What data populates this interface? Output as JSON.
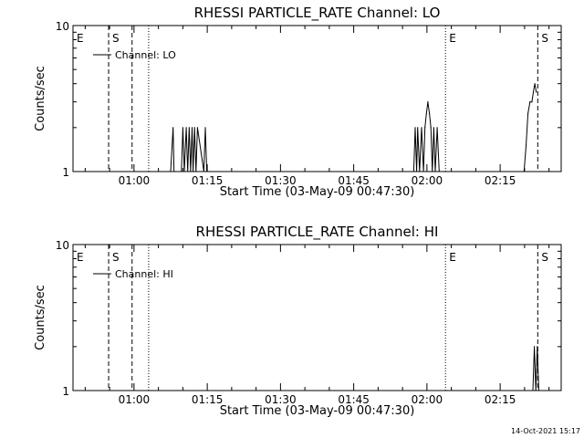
{
  "footer": {
    "timestamp": "14-Oct-2021 15:17"
  },
  "chart_data": [
    {
      "type": "line",
      "title": "RHESSI PARTICLE_RATE Channel: LO",
      "xlabel": "Start Time (03-May-09 00:47:30)",
      "ylabel": "Counts/sec",
      "log_y": true,
      "ylim": [
        1,
        10
      ],
      "xlim_minutes": [
        0,
        100
      ],
      "x_unit": "minutes after 00:47:30",
      "x_ticks": [
        {
          "label": "01:00",
          "value": 12.5
        },
        {
          "label": "01:15",
          "value": 27.5
        },
        {
          "label": "01:30",
          "value": 42.5
        },
        {
          "label": "01:45",
          "value": 57.5
        },
        {
          "label": "02:00",
          "value": 72.5
        },
        {
          "label": "02:15",
          "value": 87.5
        }
      ],
      "y_ticks": [
        {
          "label": "1",
          "value": 1
        },
        {
          "label": "10",
          "value": 10
        }
      ],
      "legend": {
        "position": "top-left",
        "entries": [
          "Channel: LO"
        ]
      },
      "series": [
        {
          "name": "Channel: LO",
          "x": [
            20.0,
            20.5,
            20.7,
            22.2,
            22.5,
            22.8,
            23.2,
            23.5,
            23.8,
            24.1,
            24.4,
            24.6,
            24.9,
            25.2,
            25.5,
            26.8,
            27.1,
            27.4,
            69.8,
            70.1,
            70.4,
            70.6,
            71.0,
            71.4,
            71.8,
            72.1,
            72.4,
            72.7,
            73.0,
            73.3,
            73.6,
            73.9,
            74.2,
            74.6,
            75.0,
            92.4,
            92.8,
            93.2,
            93.6,
            94.0,
            94.3,
            94.6,
            94.9
          ],
          "y": [
            1,
            2,
            1,
            1,
            2,
            1,
            2,
            1,
            2,
            1,
            2,
            1,
            2,
            1,
            2,
            1,
            2,
            1,
            1,
            2,
            1,
            2,
            1,
            2,
            1,
            2,
            2.5,
            3,
            2.5,
            2,
            1,
            2,
            1,
            2,
            1,
            1,
            1.5,
            2.5,
            3,
            3,
            3.5,
            4,
            3.5
          ]
        }
      ],
      "markers": [
        {
          "label": "E",
          "x": 0.0,
          "style": "dashed"
        },
        {
          "label": "S",
          "x": 7.3,
          "style": "dashed"
        },
        {
          "label": "",
          "x": 12.1,
          "style": "dashed"
        },
        {
          "label": "",
          "x": 15.5,
          "style": "dotted"
        },
        {
          "label": "E",
          "x": 76.3,
          "style": "dotted"
        },
        {
          "label": "S",
          "x": 95.2,
          "style": "dashed"
        }
      ]
    },
    {
      "type": "line",
      "title": "RHESSI PARTICLE_RATE Channel: HI",
      "xlabel": "Start Time (03-May-09 00:47:30)",
      "ylabel": "Counts/sec",
      "log_y": true,
      "ylim": [
        1,
        10
      ],
      "xlim_minutes": [
        0,
        100
      ],
      "x_unit": "minutes after 00:47:30",
      "x_ticks": [
        {
          "label": "01:00",
          "value": 12.5
        },
        {
          "label": "01:15",
          "value": 27.5
        },
        {
          "label": "01:30",
          "value": 42.5
        },
        {
          "label": "01:45",
          "value": 57.5
        },
        {
          "label": "02:00",
          "value": 72.5
        },
        {
          "label": "02:15",
          "value": 87.5
        }
      ],
      "y_ticks": [
        {
          "label": "1",
          "value": 1
        },
        {
          "label": "10",
          "value": 10
        }
      ],
      "legend": {
        "position": "top-left",
        "entries": [
          "Channel: HI"
        ]
      },
      "series": [
        {
          "name": "Channel: HI",
          "x": [
            94.2,
            94.5,
            94.8,
            95.1,
            95.4,
            95.7
          ],
          "y": [
            1,
            2,
            1,
            2,
            1,
            1
          ]
        }
      ],
      "markers": [
        {
          "label": "E",
          "x": 0.0,
          "style": "dashed"
        },
        {
          "label": "S",
          "x": 7.3,
          "style": "dashed"
        },
        {
          "label": "",
          "x": 12.1,
          "style": "dashed"
        },
        {
          "label": "",
          "x": 15.5,
          "style": "dotted"
        },
        {
          "label": "E",
          "x": 76.3,
          "style": "dotted"
        },
        {
          "label": "S",
          "x": 95.2,
          "style": "dashed"
        }
      ]
    }
  ]
}
